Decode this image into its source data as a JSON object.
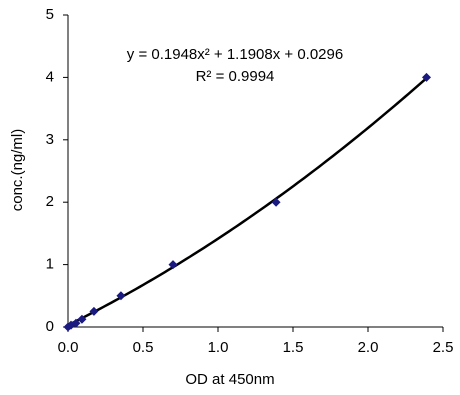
{
  "chart_data": {
    "type": "scatter",
    "x_label": "OD at 450nm",
    "y_label": "conc.(ng/ml)",
    "x": [
      0,
      0.02,
      0.053,
      0.093,
      0.173,
      0.353,
      0.7,
      1.387,
      2.39
    ],
    "values": [
      0,
      0.03,
      0.06,
      0.125,
      0.25,
      0.5,
      1,
      2,
      4
    ],
    "color": "#1a1a80",
    "marker": "diamond",
    "trendline": {
      "type": "polynomial",
      "coefficients": [
        0.1948,
        1.1908,
        0.0296
      ],
      "color": "#000000",
      "equation": "y = 0.1948x² + 1.1908x + 0.0296",
      "r_squared": "R² = 0.9994"
    },
    "xlim": [
      0,
      2.5
    ],
    "xticks": [
      {
        "value": 0,
        "label": "0.0"
      },
      0.5,
      {
        "value": 1,
        "label": "1.0"
      },
      1.5,
      {
        "value": 2,
        "label": "2.0"
      },
      2.5
    ],
    "ylim": [
      0,
      5
    ],
    "yticks": [
      0,
      1,
      2,
      3,
      4,
      5
    ],
    "grid": false
  }
}
